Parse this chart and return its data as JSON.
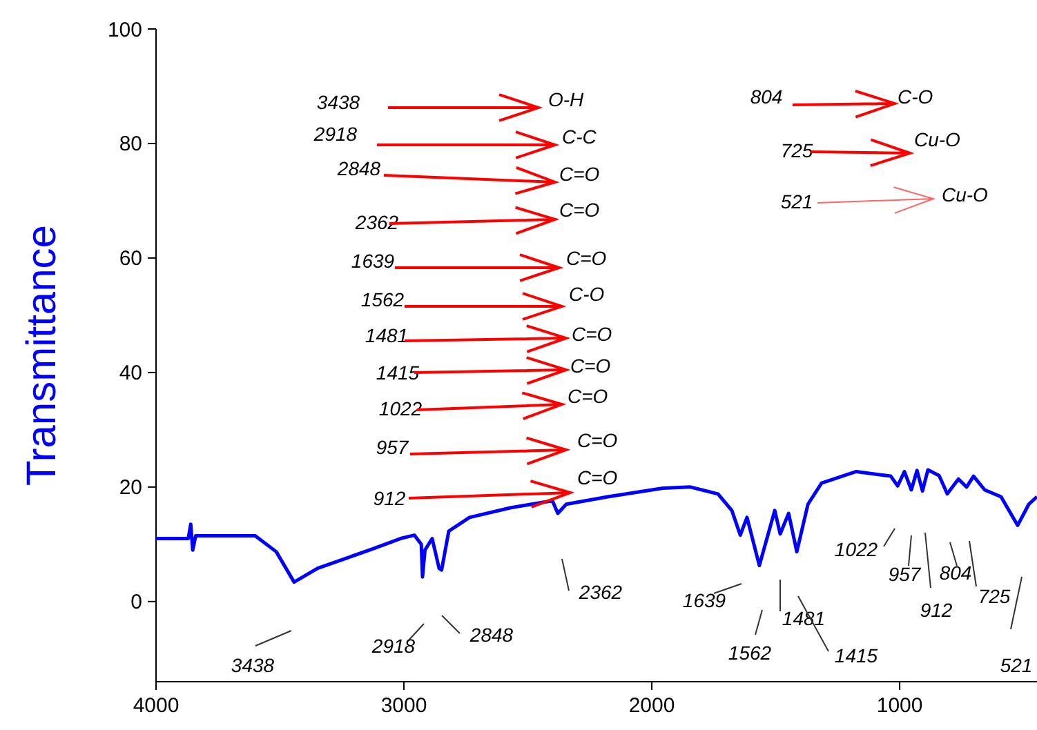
{
  "chart_data": {
    "type": "line",
    "ylabel": "Transmittance",
    "xlim": [
      4000,
      446
    ],
    "xticks": [
      4000,
      3000,
      2000,
      1000
    ],
    "ylim": [
      -14,
      100
    ],
    "yticks": [
      0,
      20,
      40,
      60,
      80,
      100
    ],
    "grid": false,
    "marker": "none",
    "line_style": "solid",
    "series": [
      {
        "color": "#0000ff",
        "x": [
          4000,
          3930,
          3870,
          3860,
          3852,
          3840,
          3700,
          3600,
          3515,
          3443,
          3348,
          3237,
          3125,
          3014,
          2958,
          2930,
          2925,
          2915,
          2886,
          2858,
          2848,
          2819,
          2735,
          2568,
          2401,
          2379,
          2345,
          2178,
          1955,
          1844,
          1733,
          1677,
          1643,
          1616,
          1566,
          1504,
          1482,
          1448,
          1415,
          1370,
          1315,
          1175,
          1036,
          1008,
          981,
          953,
          930,
          908,
          886,
          841,
          808,
          763,
          730,
          702,
          657,
          591,
          524,
          479,
          446
        ],
        "values": [
          11,
          11,
          11,
          13.5,
          9,
          11.5,
          11.5,
          11.5,
          8.7,
          3.4,
          5.8,
          7.5,
          9.2,
          11,
          11.6,
          10,
          4.3,
          9,
          11,
          5.8,
          5.5,
          12.3,
          14.7,
          16.4,
          17.6,
          15.4,
          17,
          18.3,
          19.8,
          20,
          18.8,
          15.9,
          11.6,
          14.7,
          6.3,
          15.9,
          11.8,
          15.4,
          8.7,
          17,
          20.7,
          22.7,
          21.9,
          20.2,
          22.7,
          19.5,
          22.9,
          19.3,
          23,
          22,
          18.8,
          21.4,
          20,
          21.9,
          19.5,
          18.3,
          13.3,
          17,
          18.3
        ]
      }
    ],
    "annotations": [
      "3438",
      "O-H",
      "2918",
      "C-C",
      "2848",
      "C=O",
      "2362",
      "C=O",
      "1639",
      "C=O",
      "1562",
      "C-O",
      "1481",
      "C=O",
      "1415",
      "C=O",
      "1022",
      "C=O",
      "957",
      "C=O",
      "912",
      "C=O",
      "804",
      "C-O",
      "725",
      "Cu-O",
      "521",
      "Cu-O",
      "3438",
      "2918",
      "2848",
      "2362",
      "1639",
      "1562",
      "1481",
      "1415",
      "1022",
      "957",
      "912",
      "804",
      "725",
      "521"
    ]
  }
}
